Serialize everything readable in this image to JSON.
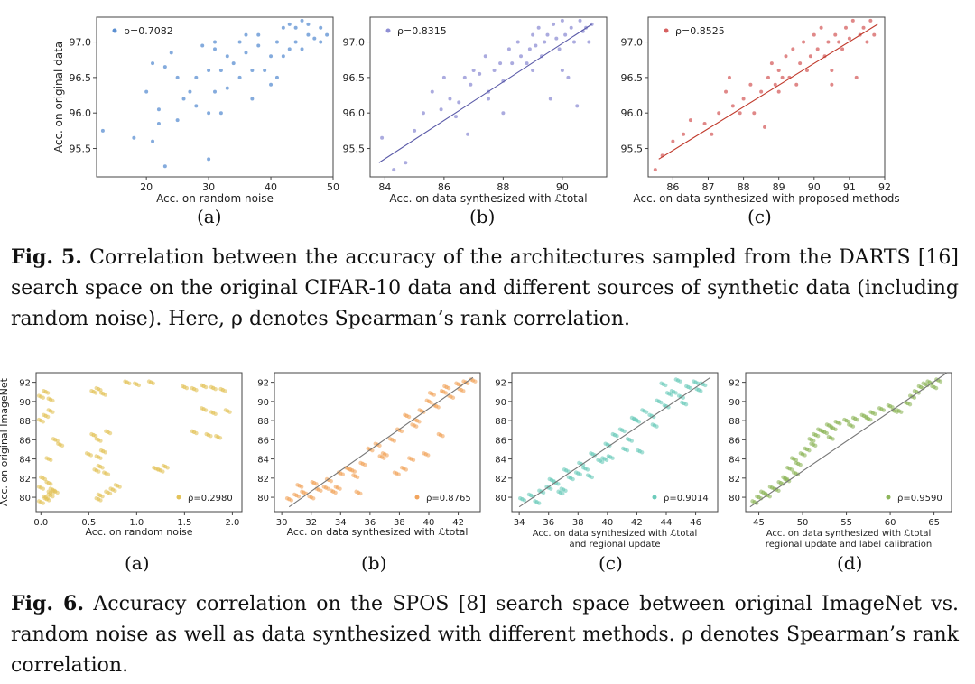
{
  "fig5": {
    "caption": {
      "label": "Fig. 5.",
      "text": "Correlation between the accuracy of the architectures sampled from the DARTS [16] search space on the original CIFAR-10 data and different sources of synthetic data (including random noise). Here, ρ denotes Spearman’s rank correlation."
    },
    "sublabels": [
      "(a)",
      "(b)",
      "(c)"
    ]
  },
  "fig6": {
    "caption": {
      "label": "Fig. 6.",
      "text": "Accuracy correlation on the SPOS [8] search space between original ImageNet vs. random noise as well as data synthesized with different methods. ρ denotes Spearman’s rank correlation."
    },
    "sublabels": [
      "(a)",
      "(b)",
      "(c)",
      "(d)"
    ]
  },
  "chart_data": [
    {
      "id": "fig5a",
      "type": "scatter",
      "title": "",
      "xlabel": "Acc. on random noise",
      "ylabel": "Acc. on original data",
      "annotation": "ρ=0.7082",
      "color": "#5b8fd1",
      "xlim": [
        12,
        50
      ],
      "ylim": [
        95.1,
        97.35
      ],
      "xticks": [
        "20",
        "30",
        "40",
        "50"
      ],
      "yticks": [
        "95.5",
        "96.0",
        "96.5",
        "97.0"
      ],
      "fit_line": false,
      "x": [
        13,
        18,
        20,
        21,
        21,
        22,
        22,
        23,
        23,
        24,
        25,
        25,
        26,
        27,
        28,
        28,
        29,
        30,
        30,
        30,
        31,
        31,
        31,
        32,
        32,
        33,
        33,
        34,
        35,
        35,
        36,
        36,
        37,
        37,
        38,
        38,
        39,
        40,
        40,
        41,
        41,
        42,
        42,
        43,
        43,
        44,
        44,
        45,
        45,
        46,
        46,
        47,
        48,
        48,
        49
      ],
      "y": [
        95.75,
        95.65,
        96.3,
        95.6,
        96.7,
        95.85,
        96.05,
        95.25,
        96.65,
        96.85,
        95.9,
        96.5,
        96.2,
        96.3,
        96.1,
        96.5,
        96.95,
        95.35,
        96.0,
        96.6,
        96.3,
        96.9,
        97.0,
        96.0,
        96.6,
        96.35,
        96.8,
        96.7,
        97.0,
        96.5,
        96.85,
        97.1,
        96.2,
        96.6,
        96.95,
        97.1,
        96.6,
        96.4,
        96.8,
        97.0,
        96.5,
        97.2,
        96.8,
        96.9,
        97.25,
        97.0,
        97.2,
        97.3,
        96.9,
        97.1,
        97.25,
        97.05,
        97.2,
        97.0,
        97.1
      ]
    },
    {
      "id": "fig5b",
      "type": "scatter",
      "title": "",
      "xlabel": "Acc. on data synthesized with ℒtotal",
      "ylabel": "",
      "annotation": "ρ=0.8315",
      "color": "#8f8fd4",
      "xlim": [
        83.5,
        91.5
      ],
      "ylim": [
        95.1,
        97.35
      ],
      "xticks": [
        "84",
        "86",
        "88",
        "90"
      ],
      "yticks": [
        "95.5",
        "96.0",
        "96.5",
        "97.0"
      ],
      "fit_line": true,
      "fit": [
        [
          83.8,
          95.3
        ],
        [
          91.0,
          97.25
        ]
      ],
      "x": [
        83.9,
        84.3,
        84.7,
        85.0,
        85.3,
        85.6,
        85.9,
        86.0,
        86.2,
        86.4,
        86.5,
        86.7,
        86.9,
        87.0,
        87.2,
        87.4,
        87.5,
        87.7,
        87.9,
        88.0,
        88.2,
        88.3,
        88.5,
        88.6,
        88.8,
        88.9,
        89.0,
        89.1,
        89.2,
        89.3,
        89.4,
        89.5,
        89.6,
        89.7,
        89.8,
        89.9,
        90.0,
        90.0,
        90.1,
        90.2,
        90.3,
        90.4,
        90.5,
        90.6,
        90.7,
        90.8,
        90.9,
        91.0,
        89.0,
        88.0,
        87.5,
        86.8
      ],
      "y": [
        95.65,
        95.2,
        95.3,
        95.75,
        96.0,
        96.3,
        96.05,
        96.5,
        96.2,
        95.95,
        96.15,
        96.5,
        96.4,
        96.6,
        96.55,
        96.8,
        96.3,
        96.6,
        96.7,
        96.45,
        96.9,
        96.7,
        97.0,
        96.8,
        96.7,
        96.9,
        97.1,
        96.95,
        97.2,
        96.8,
        97.0,
        97.1,
        96.2,
        97.25,
        97.05,
        96.9,
        97.3,
        96.6,
        97.1,
        96.5,
        97.2,
        97.0,
        96.1,
        97.3,
        97.15,
        97.2,
        97.0,
        97.25,
        96.6,
        96.0,
        96.2,
        95.7
      ]
    },
    {
      "id": "fig5c",
      "type": "scatter",
      "title": "",
      "xlabel": "Acc. on data synthesized with proposed methods",
      "ylabel": "",
      "annotation": "ρ=0.8525",
      "color": "#d66060",
      "xlim": [
        85.3,
        92.0
      ],
      "ylim": [
        95.1,
        97.35
      ],
      "xticks": [
        "86",
        "87",
        "88",
        "89",
        "90",
        "91",
        "92"
      ],
      "yticks": [
        "95.5",
        "96.0",
        "96.5",
        "97.0"
      ],
      "fit_line": true,
      "fit": [
        [
          85.6,
          95.35
        ],
        [
          91.8,
          97.25
        ]
      ],
      "x": [
        85.5,
        85.7,
        86.0,
        86.3,
        86.5,
        86.9,
        87.1,
        87.3,
        87.5,
        87.7,
        87.9,
        88.0,
        88.2,
        88.3,
        88.5,
        88.7,
        88.8,
        88.9,
        89.0,
        89.1,
        89.2,
        89.3,
        89.4,
        89.5,
        89.6,
        89.7,
        89.8,
        89.9,
        90.0,
        90.1,
        90.2,
        90.3,
        90.4,
        90.5,
        90.6,
        90.7,
        90.8,
        90.9,
        91.0,
        91.1,
        91.2,
        91.3,
        91.4,
        91.5,
        91.6,
        91.7,
        90.5,
        89.0,
        88.6,
        87.6
      ],
      "y": [
        95.2,
        95.4,
        95.6,
        95.7,
        95.9,
        95.85,
        95.7,
        96.0,
        96.3,
        96.1,
        96.0,
        96.2,
        96.4,
        96.0,
        96.3,
        96.5,
        96.7,
        96.4,
        96.6,
        96.5,
        96.8,
        96.5,
        96.9,
        96.4,
        96.7,
        97.0,
        96.6,
        96.8,
        97.1,
        96.9,
        97.2,
        96.8,
        97.0,
        96.6,
        97.1,
        97.0,
        96.9,
        97.2,
        97.05,
        97.3,
        96.5,
        97.1,
        97.2,
        97.0,
        97.3,
        97.1,
        96.4,
        96.3,
        95.8,
        96.5
      ]
    },
    {
      "id": "fig6a",
      "type": "scatter",
      "title": "",
      "xlabel": "Acc. on random noise",
      "ylabel": "Acc. on original ImageNet",
      "annotation": "ρ=0.2980",
      "color": "#e3c35a",
      "xlim": [
        -0.05,
        2.1
      ],
      "ylim": [
        78.5,
        93.0
      ],
      "xticks": [
        "0.0",
        "0.5",
        "1.0",
        "1.5",
        "2.0"
      ],
      "yticks": [
        "80",
        "82",
        "84",
        "86",
        "88",
        "90",
        "92"
      ],
      "fit_line": false,
      "x": [
        0.0,
        0.05,
        0.1,
        0.0,
        0.08,
        0.12,
        0.02,
        0.06,
        0.1,
        0.15,
        0.0,
        0.05,
        0.1,
        0.55,
        0.6,
        0.65,
        0.55,
        0.6,
        0.7,
        0.5,
        0.6,
        0.65,
        0.58,
        0.62,
        0.68,
        0.7,
        0.75,
        0.8,
        0.6,
        0.62,
        1.2,
        1.25,
        1.3,
        1.15,
        1.5,
        1.6,
        1.7,
        1.8,
        1.9,
        1.7,
        1.8,
        1.95,
        1.75,
        1.85,
        1.6,
        0.0,
        0.05,
        0.1,
        0.15,
        0.2,
        0.08,
        0.9,
        1.0
      ],
      "y": [
        79.5,
        80.0,
        80.5,
        81.0,
        81.5,
        80.8,
        82.0,
        79.8,
        80.2,
        80.6,
        90.5,
        91.0,
        90.2,
        91.0,
        91.3,
        90.8,
        86.5,
        86.0,
        86.8,
        84.5,
        84.2,
        84.8,
        82.8,
        83.2,
        82.5,
        80.5,
        80.8,
        81.2,
        79.8,
        80.2,
        83.0,
        82.8,
        83.2,
        92.0,
        91.5,
        91.3,
        91.6,
        91.4,
        91.2,
        89.2,
        88.8,
        89.0,
        86.5,
        86.3,
        86.8,
        88.0,
        88.5,
        89.0,
        86.0,
        85.5,
        84.0,
        92.0,
        91.8
      ]
    },
    {
      "id": "fig6b",
      "type": "scatter",
      "title": "",
      "xlabel": "Acc. on data synthesized with ℒtotal",
      "ylabel": "",
      "annotation": "ρ=0.8765",
      "color": "#f2a55e",
      "xlim": [
        29.5,
        43.5
      ],
      "ylim": [
        78.5,
        93.0
      ],
      "xticks": [
        "30",
        "32",
        "34",
        "36",
        "38",
        "40",
        "42"
      ],
      "yticks": [
        "80",
        "82",
        "84",
        "86",
        "88",
        "90",
        "92"
      ],
      "fit_line": true,
      "fit": [
        [
          30.5,
          79.0
        ],
        [
          43.0,
          92.5
        ]
      ],
      "x": [
        30.5,
        31.0,
        31.5,
        32.0,
        32.5,
        33.0,
        33.5,
        31.2,
        32.2,
        33.2,
        34.0,
        34.5,
        35.0,
        35.5,
        33.8,
        34.8,
        36.0,
        36.5,
        37.0,
        37.5,
        38.0,
        38.5,
        39.0,
        39.5,
        40.0,
        40.5,
        41.0,
        41.5,
        42.0,
        42.5,
        39.2,
        40.2,
        41.2,
        42.2,
        43.0,
        38.8,
        39.8,
        40.8,
        37.8,
        38.3,
        36.8,
        35.2
      ],
      "y": [
        79.8,
        80.2,
        80.5,
        80.0,
        80.8,
        81.0,
        80.6,
        81.2,
        81.5,
        81.8,
        82.5,
        83.0,
        82.2,
        83.5,
        81.0,
        82.8,
        85.0,
        85.5,
        84.5,
        86.0,
        87.0,
        88.5,
        87.5,
        89.0,
        90.0,
        89.5,
        91.0,
        90.5,
        91.8,
        92.0,
        88.0,
        90.8,
        91.5,
        91.2,
        92.2,
        84.0,
        84.5,
        86.5,
        82.5,
        83.0,
        84.2,
        80.5
      ]
    },
    {
      "id": "fig6c",
      "type": "scatter",
      "title": "",
      "xlabel": "Acc. on data synthesized with ℒtotal and regional update",
      "ylabel": "",
      "annotation": "ρ=0.9014",
      "color": "#6ccbbb",
      "xlim": [
        33.5,
        47.5
      ],
      "ylim": [
        78.5,
        93.0
      ],
      "xticks": [
        "34",
        "36",
        "38",
        "40",
        "42",
        "44",
        "46"
      ],
      "yticks": [
        "80",
        "82",
        "84",
        "86",
        "88",
        "90",
        "92"
      ],
      "fit_line": true,
      "fit": [
        [
          34.0,
          79.0
        ],
        [
          47.0,
          92.5
        ]
      ],
      "x": [
        34.2,
        34.8,
        35.5,
        36.0,
        36.5,
        37.0,
        37.5,
        38.0,
        38.5,
        36.2,
        37.2,
        38.2,
        39.0,
        39.5,
        40.0,
        40.5,
        41.0,
        41.5,
        42.0,
        42.5,
        43.0,
        43.5,
        44.0,
        44.5,
        45.0,
        45.5,
        46.0,
        46.5,
        40.2,
        41.2,
        42.2,
        43.2,
        44.2,
        45.2,
        46.2,
        38.8,
        39.8,
        41.8,
        43.8,
        35.2,
        36.8,
        44.8
      ],
      "y": [
        79.8,
        80.2,
        80.6,
        81.0,
        81.5,
        80.8,
        82.0,
        82.5,
        83.0,
        81.8,
        82.8,
        83.5,
        84.5,
        83.8,
        85.5,
        86.5,
        87.0,
        86.0,
        88.0,
        89.0,
        88.5,
        90.0,
        89.5,
        91.0,
        90.5,
        91.5,
        92.0,
        91.8,
        84.2,
        85.0,
        84.8,
        87.5,
        90.8,
        89.8,
        91.2,
        82.2,
        84.0,
        88.2,
        91.8,
        79.5,
        80.5,
        92.2
      ]
    },
    {
      "id": "fig6d",
      "type": "scatter",
      "title": "",
      "xlabel": "Acc. on data synthesized with ℒtotal regional update and label calibration",
      "ylabel": "",
      "annotation": "ρ=0.9590",
      "color": "#8db55a",
      "xlim": [
        43.5,
        67.0
      ],
      "ylim": [
        78.5,
        93.0
      ],
      "xticks": [
        "45",
        "50",
        "55",
        "60",
        "65"
      ],
      "yticks": [
        "80",
        "82",
        "84",
        "86",
        "88",
        "90",
        "92"
      ],
      "fit_line": true,
      "fit": [
        [
          44.0,
          79.0
        ],
        [
          66.5,
          93.0
        ]
      ],
      "x": [
        44.5,
        45.0,
        45.5,
        46.0,
        46.5,
        47.0,
        47.5,
        48.0,
        48.5,
        49.0,
        49.5,
        50.0,
        50.5,
        51.0,
        51.5,
        52.0,
        52.5,
        53.0,
        53.5,
        54.0,
        55.0,
        56.0,
        57.0,
        58.0,
        59.0,
        60.0,
        61.0,
        62.0,
        62.5,
        63.0,
        63.5,
        64.0,
        64.5,
        65.0,
        65.5,
        48.2,
        49.2,
        51.2,
        53.2,
        55.5,
        57.5,
        60.5
      ],
      "y": [
        79.5,
        80.0,
        80.5,
        80.2,
        81.0,
        80.8,
        81.5,
        82.0,
        83.0,
        84.0,
        83.5,
        84.5,
        85.0,
        86.0,
        86.5,
        87.0,
        86.8,
        87.5,
        87.2,
        87.8,
        88.0,
        88.2,
        88.5,
        88.8,
        89.2,
        89.5,
        89.0,
        89.8,
        90.5,
        91.0,
        91.5,
        91.8,
        92.0,
        91.5,
        92.2,
        81.8,
        82.5,
        85.5,
        86.2,
        87.5,
        88.2,
        89.0
      ]
    }
  ]
}
